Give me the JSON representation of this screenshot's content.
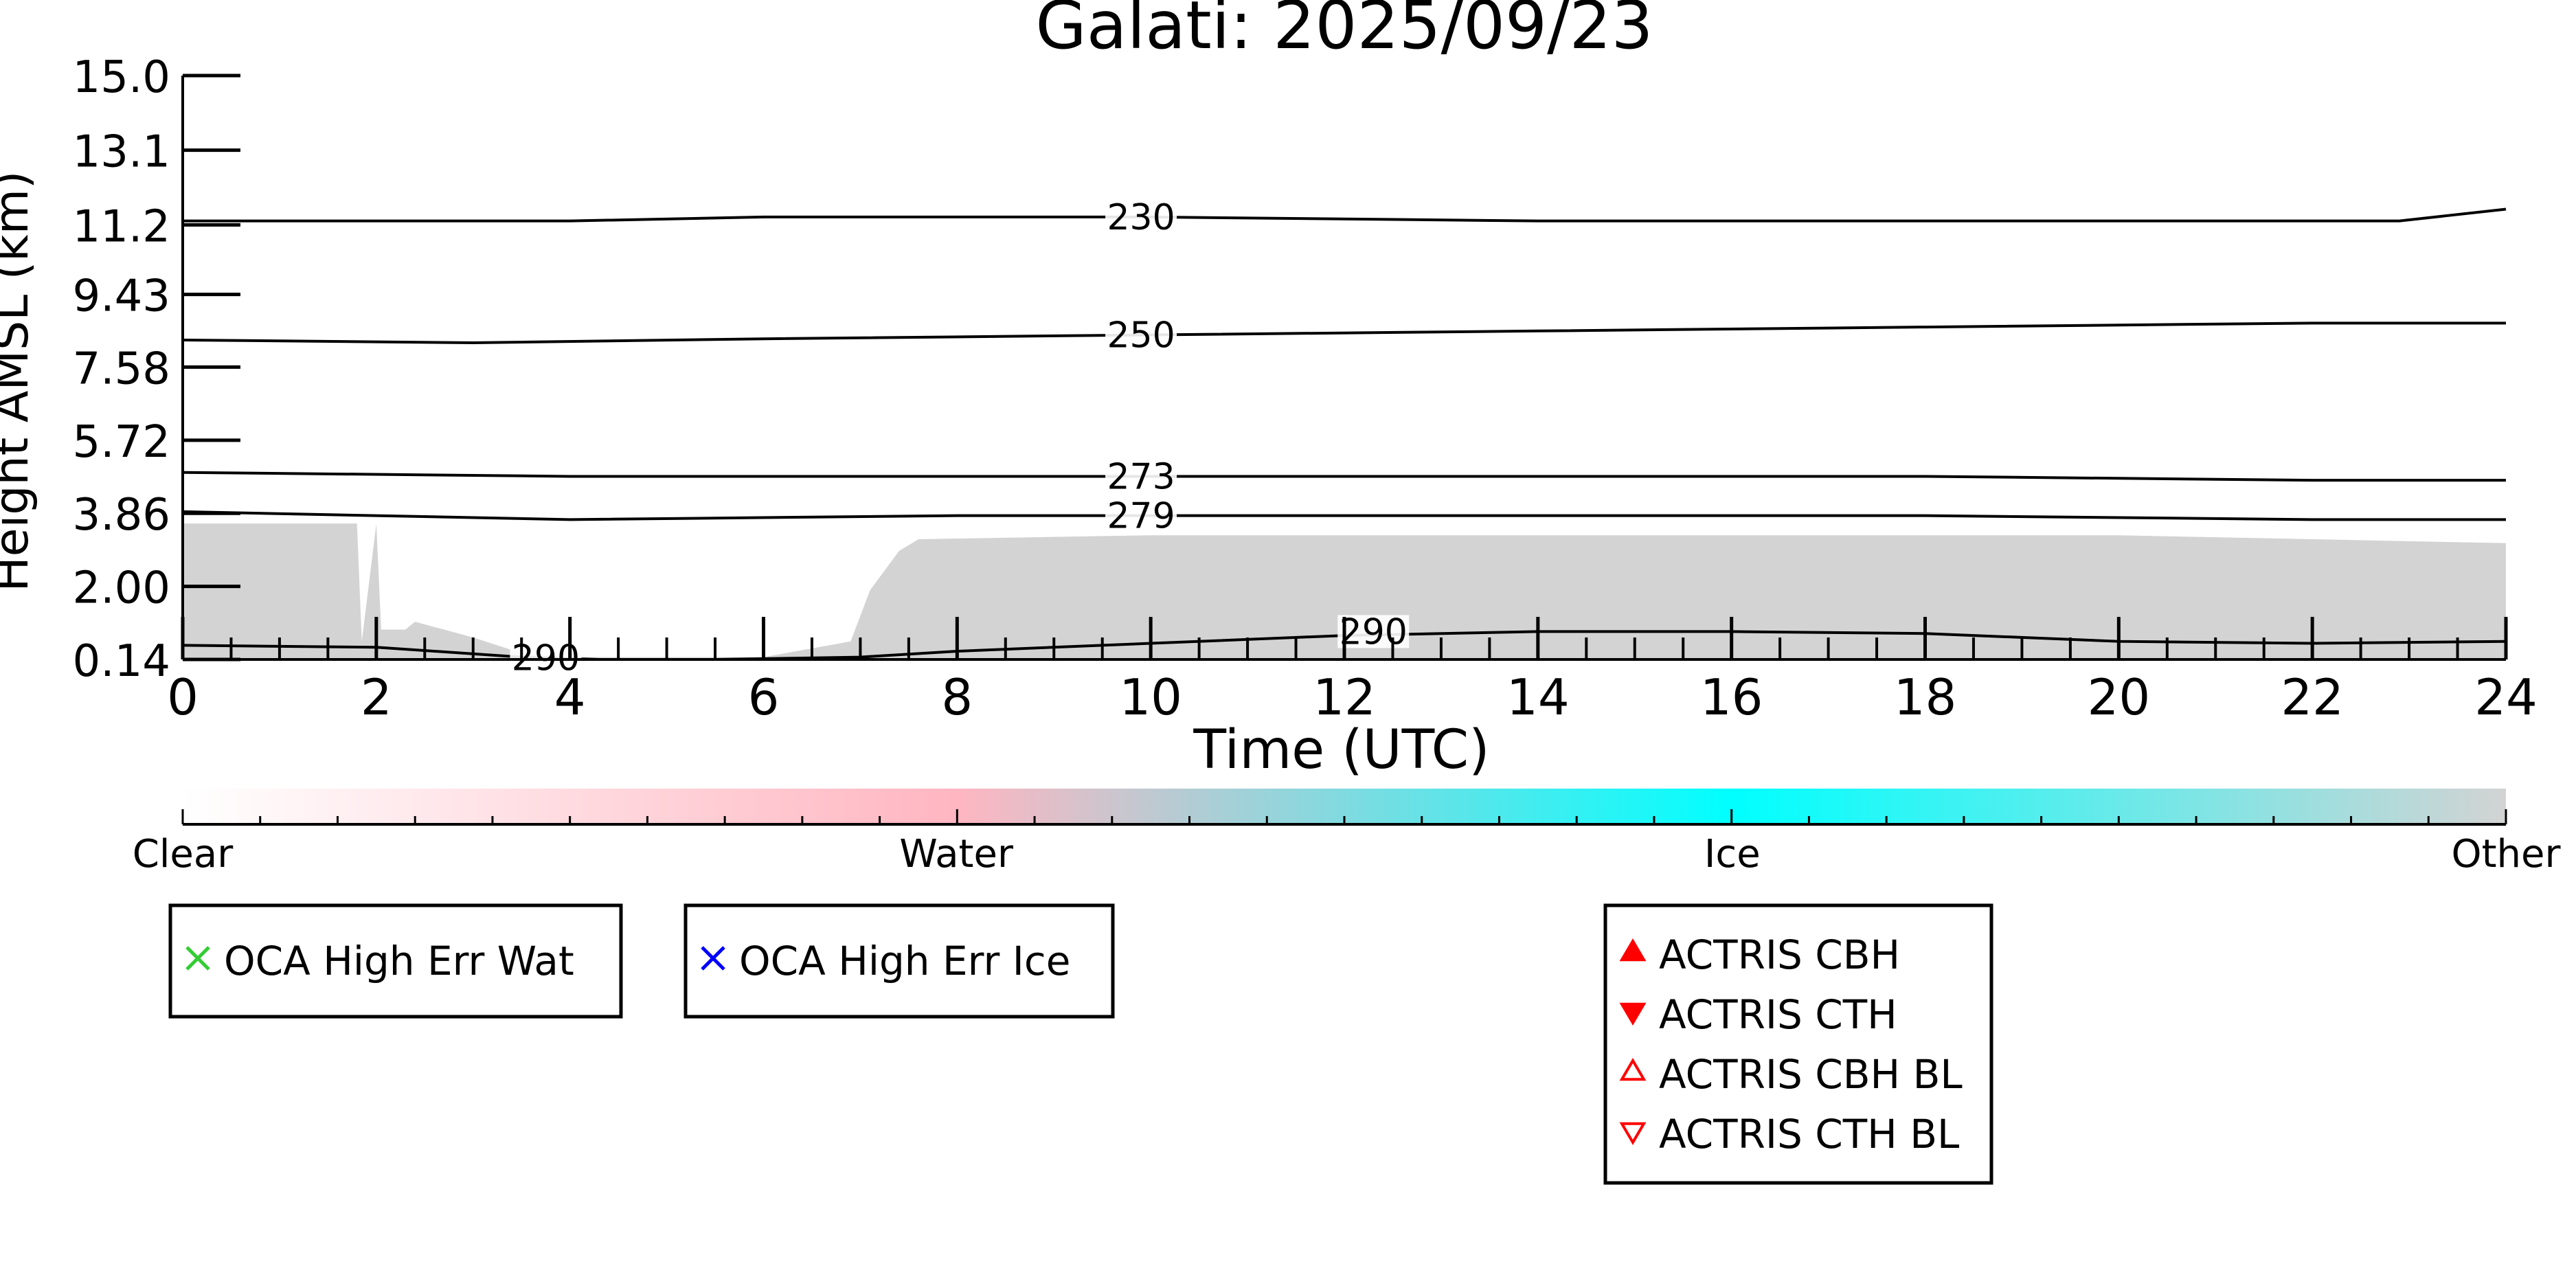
{
  "chart_data": {
    "type": "heatmap",
    "title": "Galati: 2025/09/23",
    "xlabel": "Time (UTC)",
    "ylabel": "Height AMSL (km)",
    "xlim": [
      0,
      24
    ],
    "ylim": [
      0.14,
      15.0
    ],
    "x_ticks": [
      "0",
      "2",
      "4",
      "6",
      "8",
      "10",
      "12",
      "14",
      "16",
      "18",
      "20",
      "22",
      "24"
    ],
    "y_ticks": [
      "0.14",
      "2.00",
      "3.86",
      "5.72",
      "7.58",
      "9.43",
      "11.2",
      "13.1",
      "15.0"
    ],
    "y_tick_values": [
      0.14,
      2.0,
      3.86,
      5.72,
      7.58,
      9.43,
      11.2,
      13.1,
      15.0
    ],
    "grid": false,
    "cloud_field": {
      "label": "Other",
      "color": "#d3d3d3",
      "top_km": [
        [
          0.0,
          3.6
        ],
        [
          1.8,
          3.6
        ],
        [
          1.85,
          0.6
        ],
        [
          2.0,
          3.6
        ],
        [
          2.05,
          0.9
        ],
        [
          2.3,
          0.9
        ],
        [
          2.4,
          1.1
        ],
        [
          3.0,
          0.7
        ],
        [
          3.5,
          0.3
        ],
        [
          4.0,
          0.2
        ],
        [
          5.0,
          0.2
        ],
        [
          6.0,
          0.2
        ],
        [
          6.9,
          0.6
        ],
        [
          7.1,
          1.9
        ],
        [
          7.4,
          2.9
        ],
        [
          7.6,
          3.2
        ],
        [
          10.0,
          3.3
        ],
        [
          14.0,
          3.3
        ],
        [
          16.0,
          3.3
        ],
        [
          20.0,
          3.3
        ],
        [
          24.0,
          3.1
        ]
      ]
    },
    "temperature_contours": [
      {
        "label": "230",
        "label_x": 9.9,
        "points": [
          [
            0,
            11.3
          ],
          [
            4,
            11.3
          ],
          [
            6,
            11.4
          ],
          [
            8,
            11.4
          ],
          [
            10,
            11.4
          ],
          [
            14,
            11.3
          ],
          [
            18,
            11.3
          ],
          [
            22.9,
            11.3
          ],
          [
            24,
            11.6
          ]
        ]
      },
      {
        "label": "250",
        "label_x": 9.9,
        "points": [
          [
            0,
            8.27
          ],
          [
            3,
            8.2
          ],
          [
            6,
            8.3
          ],
          [
            10,
            8.4
          ],
          [
            14,
            8.5
          ],
          [
            18,
            8.6
          ],
          [
            22,
            8.7
          ],
          [
            24,
            8.7
          ]
        ]
      },
      {
        "label": "273",
        "label_x": 9.9,
        "points": [
          [
            0,
            4.9
          ],
          [
            4,
            4.8
          ],
          [
            8,
            4.8
          ],
          [
            10,
            4.8
          ],
          [
            14,
            4.8
          ],
          [
            18,
            4.8
          ],
          [
            22,
            4.7
          ],
          [
            24,
            4.7
          ]
        ]
      },
      {
        "label": "279",
        "label_x": 9.9,
        "points": [
          [
            0,
            3.9
          ],
          [
            4,
            3.7
          ],
          [
            8,
            3.8
          ],
          [
            10,
            3.8
          ],
          [
            14,
            3.8
          ],
          [
            18,
            3.8
          ],
          [
            22,
            3.7
          ],
          [
            24,
            3.7
          ]
        ]
      },
      {
        "label": "290",
        "label_x": 3.75,
        "points": [
          [
            0,
            0.5
          ],
          [
            2,
            0.45
          ],
          [
            3.5,
            0.2
          ],
          [
            4.3,
            0.14
          ],
          [
            5.5,
            0.14
          ],
          [
            7,
            0.2
          ],
          [
            8,
            0.35
          ],
          [
            10,
            0.55
          ],
          [
            12,
            0.75
          ],
          [
            14,
            0.85
          ],
          [
            16,
            0.85
          ],
          [
            18,
            0.8
          ],
          [
            20,
            0.6
          ],
          [
            22,
            0.55
          ],
          [
            24,
            0.6
          ]
        ]
      },
      {
        "label": "290",
        "label_x": 12.3,
        "label_y": 0.85,
        "points": []
      }
    ],
    "colorbar": {
      "labels": [
        "Clear",
        "Water",
        "Ice",
        "Other"
      ],
      "label_positions": [
        0,
        0.333,
        0.667,
        1.0
      ],
      "stops": [
        {
          "offset": 0.0,
          "color": "#ffffff"
        },
        {
          "offset": 0.333,
          "color": "#ffb6c1"
        },
        {
          "offset": 0.667,
          "color": "#00ffff"
        },
        {
          "offset": 1.0,
          "color": "#d3d3d3"
        }
      ],
      "ticks": 31
    },
    "legends": [
      {
        "items": [
          {
            "label": "OCA High Err Wat",
            "marker": "x",
            "color": "#32cd32"
          }
        ]
      },
      {
        "items": [
          {
            "label": "OCA High Err Ice",
            "marker": "x",
            "color": "#0000ff"
          }
        ]
      },
      {
        "items": [
          {
            "label": "ACTRIS CBH",
            "marker": "triangle-up-filled",
            "color": "#ff0000"
          },
          {
            "label": "ACTRIS CTH",
            "marker": "triangle-down-filled",
            "color": "#ff0000"
          },
          {
            "label": "ACTRIS CBH BL",
            "marker": "triangle-up-open",
            "color": "#ff0000"
          },
          {
            "label": "ACTRIS CTH BL",
            "marker": "triangle-down-open",
            "color": "#ff0000"
          }
        ]
      }
    ]
  }
}
